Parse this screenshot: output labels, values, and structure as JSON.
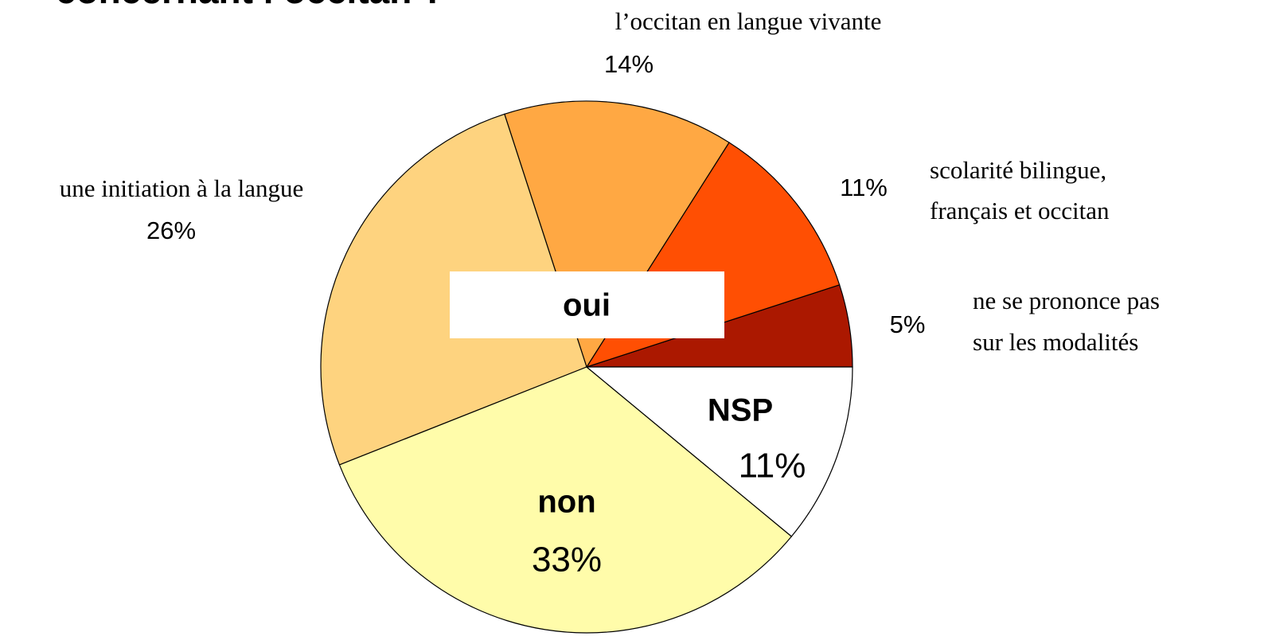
{
  "chart_data": {
    "type": "pie",
    "title": "concernant l’occitan ?",
    "group_labels": [
      "oui",
      "NSP",
      "non"
    ],
    "slices": [
      {
        "name": [
          "ne se prononce pas",
          "sur les modalités"
        ],
        "value": 5,
        "value_label": "5%",
        "color": "#ab1800"
      },
      {
        "name": [
          "scolarité bilingue,",
          "français et occitan"
        ],
        "value": 11,
        "value_label": "11%",
        "color": "#ff4f03"
      },
      {
        "name": [
          "l’occitan en langue vivante"
        ],
        "value": 14,
        "value_label": "14%",
        "color": "#ffa843"
      },
      {
        "name": [
          "une initiation à la langue"
        ],
        "value": 26,
        "value_label": "26%",
        "color": "#fed37f"
      },
      {
        "name": [],
        "value": 33,
        "value_label": "33%",
        "color": "#fffcaa"
      },
      {
        "name": [],
        "value": 11,
        "value_label": "11%",
        "color": "#ffffff"
      }
    ]
  }
}
